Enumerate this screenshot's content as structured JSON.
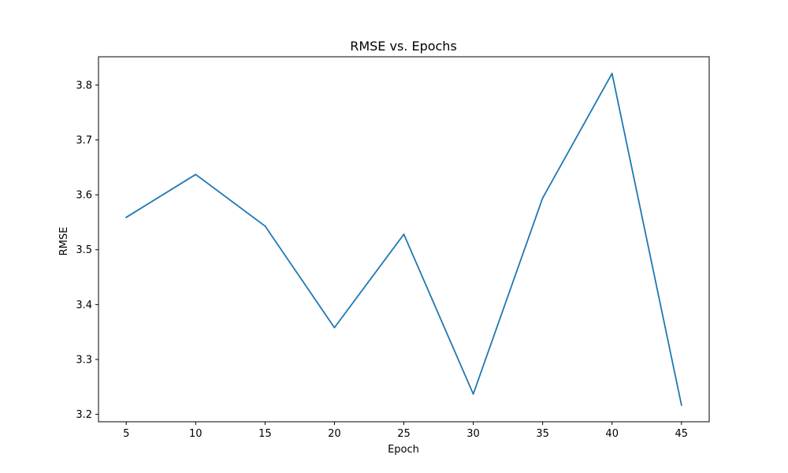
{
  "chart_data": {
    "type": "line",
    "title": "RMSE vs. Epochs",
    "xlabel": "Epoch",
    "ylabel": "RMSE",
    "x": [
      5,
      10,
      15,
      20,
      25,
      30,
      35,
      40,
      45
    ],
    "series": [
      {
        "values": [
          3.559,
          3.637,
          3.543,
          3.358,
          3.528,
          3.237,
          3.594,
          3.821,
          3.217
        ]
      }
    ],
    "xlim": [
      3,
      47
    ],
    "ylim": [
      3.1865,
      3.8515
    ],
    "xticks": [
      "5",
      "10",
      "15",
      "20",
      "25",
      "30",
      "35",
      "40",
      "45"
    ],
    "yticks": [
      "3.2",
      "3.3",
      "3.4",
      "3.5",
      "3.6",
      "3.7",
      "3.8"
    ],
    "grid": false,
    "line_color": "#1f77b4"
  }
}
